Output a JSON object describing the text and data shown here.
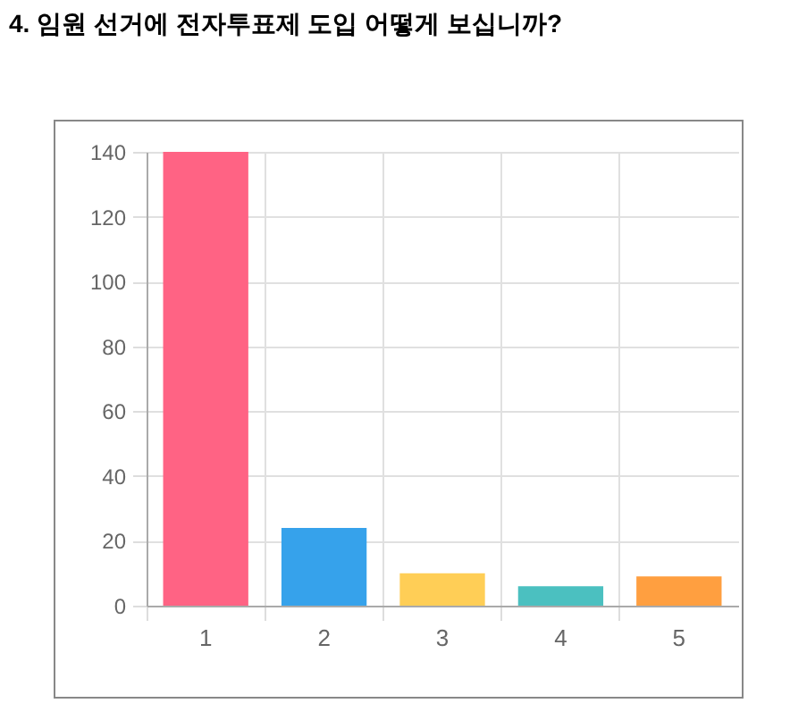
{
  "chart_data": {
    "type": "bar",
    "title": "4. 임원 선거에 전자투표제 도입 어떻게 보십니까?",
    "categories": [
      "1",
      "2",
      "3",
      "4",
      "5"
    ],
    "values": [
      140,
      24,
      10,
      6,
      9
    ],
    "colors": [
      "#ff6384",
      "#36a2eb",
      "#ffce56",
      "#4bc0c0",
      "#ff9f40"
    ],
    "ylim": [
      0,
      140
    ],
    "yticks": [
      0,
      20,
      40,
      60,
      80,
      100,
      120,
      140
    ],
    "grid": true
  }
}
